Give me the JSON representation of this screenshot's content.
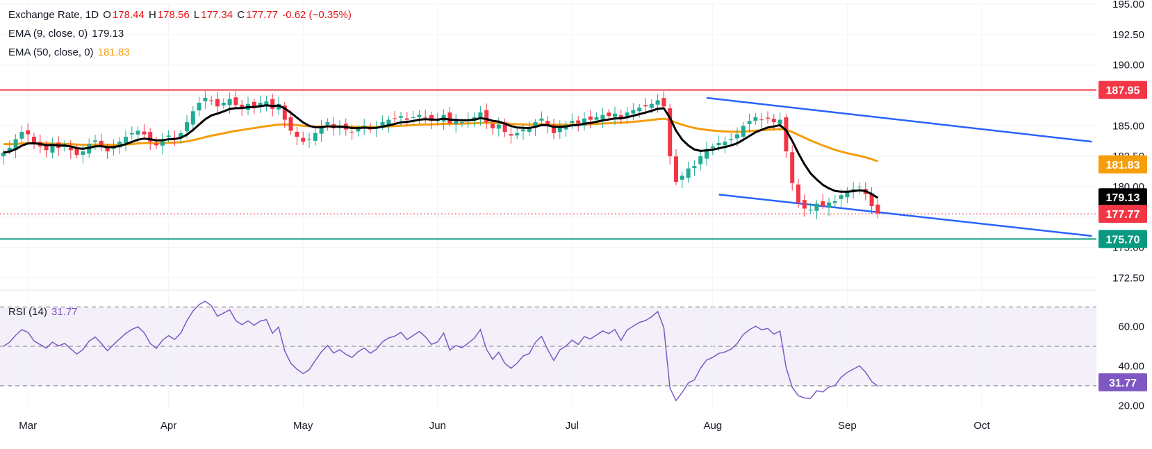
{
  "legend": {
    "symbol": "Exchange Rate, 1D",
    "o_label": "O",
    "o_val": "178.44",
    "h_label": "H",
    "h_val": "178.56",
    "l_label": "L",
    "l_val": "177.34",
    "c_label": "C",
    "c_val": "177.77",
    "change": "-0.62 (−0.35%)",
    "ema9_label": "EMA (9, close, 0)",
    "ema9_val": "179.13",
    "ema50_label": "EMA (50, close, 0)",
    "ema50_val": "181.83",
    "rsi_label": "RSI (14)",
    "rsi_val": "31.77"
  },
  "colors": {
    "up": "#22ab94",
    "down": "#f23645",
    "ema9": "#000000",
    "ema50": "#f59d0c",
    "channel": "#2962ff",
    "resistance": "#f23645",
    "support": "#089981",
    "rsi": "#7e57c2"
  },
  "chart_data": {
    "type": "candlestick",
    "price_axis": {
      "ticks": [
        172.5,
        175.0,
        177.5,
        180.0,
        182.5,
        185.0,
        187.5,
        190.0,
        192.5,
        195.0
      ],
      "tick_labels": [
        "172.50",
        "175.00",
        "177.50",
        "180.00",
        "182.50",
        "185.00",
        "187.50",
        "190.00",
        "192.50",
        "195.00"
      ],
      "ylim": [
        171.5,
        195.0
      ]
    },
    "rsi_axis": {
      "ticks": [
        20,
        40,
        60
      ],
      "tick_labels": [
        "20.00",
        "40.00",
        "60.00"
      ],
      "ylim": [
        18,
        75
      ],
      "levels": [
        30,
        50,
        70
      ]
    },
    "x_labels": [
      "Mar",
      "Apr",
      "May",
      "Jun",
      "Jul",
      "Aug",
      "Sep",
      "Oct"
    ],
    "x_label_index": [
      4,
      27,
      49,
      71,
      93,
      116,
      138,
      160
    ],
    "horizontal_levels": {
      "resistance": 187.95,
      "support": 175.7
    },
    "channel": {
      "upper": [
        [
          115,
          187.3
        ],
        [
          178,
          183.7
        ]
      ],
      "lower": [
        [
          117,
          179.35
        ],
        [
          178,
          175.95
        ]
      ]
    },
    "price_tags": [
      {
        "label": "187.95",
        "value": 187.95,
        "color": "#f23645"
      },
      {
        "label": "181.83",
        "value": 181.83,
        "color": "#f59d0c"
      },
      {
        "label": "179.13",
        "value": 179.13,
        "color": "#000000"
      },
      {
        "label": "177.77",
        "value": 177.77,
        "color": "#f23645"
      },
      {
        "label": "175.70",
        "value": 175.7,
        "color": "#089981"
      }
    ],
    "rsi_tag": {
      "label": "31.77",
      "value": 31.77
    },
    "last_close": 177.77,
    "closes": [
      182.8,
      183.2,
      183.9,
      184.5,
      184.3,
      183.6,
      183.3,
      183.0,
      183.5,
      183.2,
      183.4,
      183.0,
      182.6,
      182.9,
      183.5,
      183.8,
      183.4,
      182.9,
      183.3,
      183.7,
      184.1,
      184.4,
      184.6,
      184.3,
      183.7,
      183.4,
      183.9,
      184.2,
      184.0,
      184.4,
      185.3,
      186.2,
      186.9,
      187.3,
      187.1,
      186.6,
      186.9,
      187.2,
      186.7,
      186.5,
      186.8,
      186.6,
      186.9,
      187.0,
      186.4,
      186.8,
      185.5,
      184.6,
      184.1,
      183.7,
      183.9,
      184.4,
      184.9,
      185.3,
      184.8,
      185.0,
      184.7,
      184.5,
      184.8,
      185.0,
      184.7,
      184.9,
      185.3,
      185.5,
      185.6,
      185.8,
      185.5,
      185.7,
      185.9,
      185.7,
      185.4,
      185.5,
      185.9,
      185.2,
      185.4,
      185.3,
      185.5,
      185.7,
      186.1,
      185.3,
      184.8,
      185.1,
      184.5,
      184.2,
      184.4,
      184.7,
      184.8,
      185.3,
      185.6,
      185.0,
      184.4,
      184.9,
      185.1,
      185.4,
      185.2,
      185.6,
      185.5,
      185.7,
      185.9,
      185.8,
      186.0,
      185.6,
      186.1,
      186.3,
      186.5,
      186.6,
      186.8,
      187.1,
      186.6,
      182.5,
      180.4,
      180.9,
      181.5,
      181.7,
      182.5,
      183.1,
      183.3,
      183.6,
      183.7,
      183.9,
      184.3,
      185.0,
      185.4,
      185.7,
      185.5,
      185.6,
      185.3,
      185.5,
      182.9,
      180.3,
      178.7,
      178.2,
      178.1,
      178.6,
      178.4,
      178.7,
      178.8,
      179.3,
      179.6,
      179.8,
      180.0,
      179.4,
      178.4,
      177.8
    ]
  }
}
